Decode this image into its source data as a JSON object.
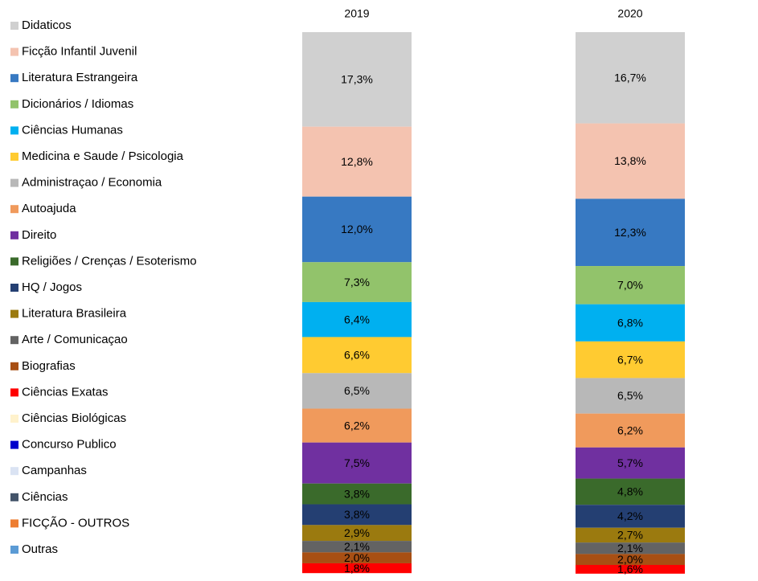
{
  "chart_data": {
    "type": "stacked-bar",
    "categories": [
      "2019",
      "2020"
    ],
    "series": [
      {
        "name": "Didaticos",
        "color": "#d0d0d0",
        "values": [
          17.3,
          16.7
        ],
        "value_labels": [
          "17,3%",
          "16,7%"
        ]
      },
      {
        "name": "Ficção Infantil Juvenil",
        "color": "#f4c3b0",
        "values": [
          12.8,
          13.8
        ],
        "value_labels": [
          "12,8%",
          "13,8%"
        ]
      },
      {
        "name": "Literatura Estrangeira",
        "color": "#3779c2",
        "values": [
          12.0,
          12.3
        ],
        "value_labels": [
          "12,0%",
          "12,3%"
        ]
      },
      {
        "name": "Dicionários / Idiomas",
        "color": "#92c36b",
        "values": [
          7.3,
          7.0
        ],
        "value_labels": [
          "7,3%",
          "7,0%"
        ]
      },
      {
        "name": "Ciências Humanas",
        "color": "#00b0f0",
        "values": [
          6.4,
          6.8
        ],
        "value_labels": [
          "6,4%",
          "6,8%"
        ]
      },
      {
        "name": "Medicina e Saude / Psicologia",
        "color": "#ffcb31",
        "values": [
          6.6,
          6.7
        ],
        "value_labels": [
          "6,6%",
          "6,7%"
        ]
      },
      {
        "name": "Administraçao / Economia",
        "color": "#b8b8b8",
        "values": [
          6.5,
          6.5
        ],
        "value_labels": [
          "6,5%",
          "6,5%"
        ]
      },
      {
        "name": "Autoajuda",
        "color": "#f09a5c",
        "values": [
          6.2,
          6.2
        ],
        "value_labels": [
          "6,2%",
          "6,2%"
        ]
      },
      {
        "name": "Direito",
        "color": "#7030a0",
        "values": [
          7.5,
          5.7
        ],
        "value_labels": [
          "7,5%",
          "5,7%"
        ]
      },
      {
        "name": "Religiões / Crenças / Esoterismo",
        "color": "#3a6a2b",
        "values": [
          3.8,
          4.8
        ],
        "value_labels": [
          "3,8%",
          "4,8%"
        ]
      },
      {
        "name": "HQ / Jogos",
        "color": "#243f72",
        "values": [
          3.8,
          4.2
        ],
        "value_labels": [
          "3,8%",
          "4,2%"
        ]
      },
      {
        "name": "Literatura Brasileira",
        "color": "#9b7a0f",
        "values": [
          2.9,
          2.7
        ],
        "value_labels": [
          "2,9%",
          "2,7%"
        ]
      },
      {
        "name": "Arte / Comunicaçao",
        "color": "#636363",
        "values": [
          2.1,
          2.1
        ],
        "value_labels": [
          "2,1%",
          "2,1%"
        ]
      },
      {
        "name": "Biografias",
        "color": "#a84f13",
        "values": [
          2.0,
          2.0
        ],
        "value_labels": [
          "2,0%",
          "2,0%"
        ]
      },
      {
        "name": "Ciências Exatas",
        "color": "#ff0000",
        "values": [
          1.8,
          1.6
        ],
        "value_labels": [
          "1,8%",
          "1,6%"
        ]
      },
      {
        "name": "Ciências Biológicas",
        "color": "#fff2cc",
        "values": [
          null,
          null
        ]
      },
      {
        "name": "Concurso Publico",
        "color": "#0000cc",
        "values": [
          null,
          null
        ]
      },
      {
        "name": "Campanhas",
        "color": "#dae3f3",
        "values": [
          null,
          null
        ]
      },
      {
        "name": "Ciências",
        "color": "#44546a",
        "values": [
          null,
          null
        ]
      },
      {
        "name": "FICÇÃO - OUTROS",
        "color": "#ed7d31",
        "values": [
          null,
          null
        ]
      },
      {
        "name": "Outras",
        "color": "#5b9bd5",
        "values": [
          null,
          null
        ]
      }
    ]
  }
}
